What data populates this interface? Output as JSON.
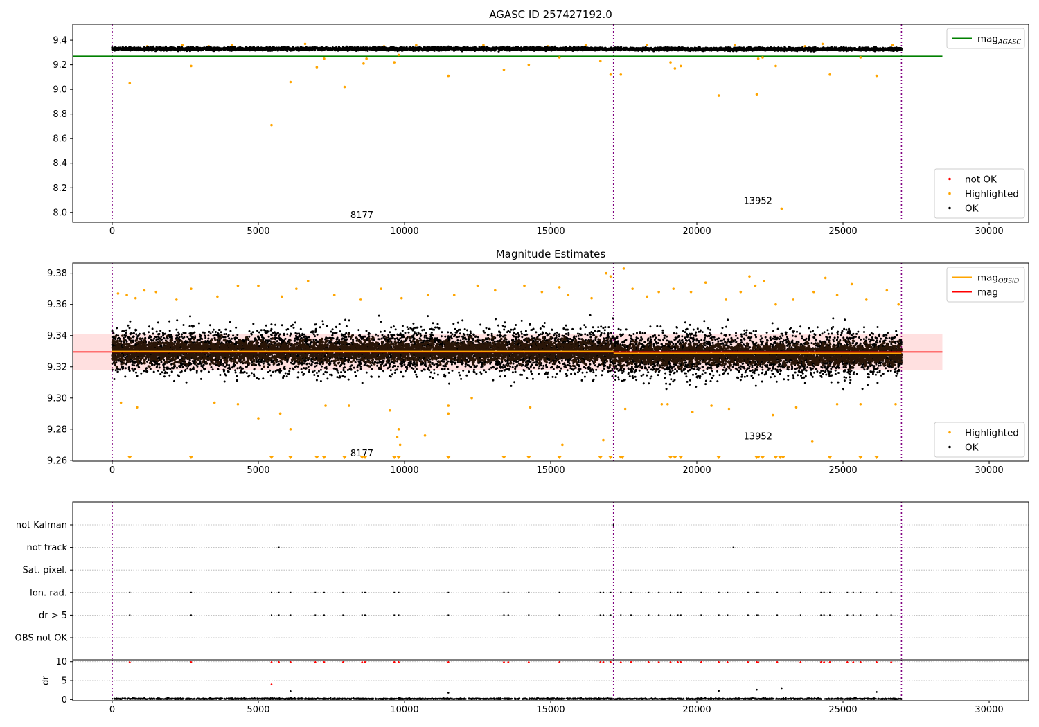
{
  "chart_data": [
    {
      "id": "agasc-panel",
      "type": "scatter",
      "title": "AGASC ID 257427192.0",
      "xlim": [
        -1350,
        31350
      ],
      "ylim": [
        7.92,
        9.53
      ],
      "xticks": [
        0,
        5000,
        10000,
        15000,
        20000,
        25000,
        30000
      ],
      "yticks": [
        8.0,
        8.2,
        8.4,
        8.6,
        8.8,
        9.0,
        9.2,
        9.4
      ],
      "ytick_decimals": 1,
      "obs_boundaries": [
        0,
        17150,
        27000
      ],
      "obs_annotations": [
        {
          "text": "8177",
          "x": 8150,
          "y": 7.955
        },
        {
          "text": "13952",
          "x": 21600,
          "y": 8.07
        }
      ],
      "reference_lines": [
        {
          "name": "mag",
          "subscript": "AGASC",
          "value": 9.27,
          "color": "#008000",
          "x": [
            -1350,
            28400
          ]
        }
      ],
      "ok_band": {
        "segments": [
          [
            0,
            17150,
            9.33
          ],
          [
            17150,
            27000,
            9.328
          ]
        ],
        "spread": 0.02
      },
      "highlighted": [
        [
          600,
          9.05
        ],
        [
          2700,
          9.19
        ],
        [
          5450,
          8.71
        ],
        [
          6100,
          9.06
        ],
        [
          7000,
          9.18
        ],
        [
          7250,
          9.25
        ],
        [
          7950,
          9.02
        ],
        [
          8600,
          9.21
        ],
        [
          8700,
          9.25
        ],
        [
          9650,
          9.22
        ],
        [
          9800,
          9.28
        ],
        [
          11500,
          9.11
        ],
        [
          13400,
          9.16
        ],
        [
          14250,
          9.2
        ],
        [
          15300,
          9.26
        ],
        [
          16700,
          9.23
        ],
        [
          17050,
          9.12
        ],
        [
          17400,
          9.12
        ],
        [
          19100,
          9.22
        ],
        [
          19250,
          9.17
        ],
        [
          19450,
          9.19
        ],
        [
          20750,
          8.95
        ],
        [
          22050,
          8.96
        ],
        [
          22100,
          9.25
        ],
        [
          22250,
          9.26
        ],
        [
          22700,
          9.19
        ],
        [
          22900,
          8.03
        ],
        [
          24550,
          9.12
        ],
        [
          25600,
          9.26
        ],
        [
          26150,
          9.11
        ],
        [
          1200,
          9.35
        ],
        [
          2400,
          9.36
        ],
        [
          3300,
          9.35
        ],
        [
          4100,
          9.36
        ],
        [
          6600,
          9.37
        ],
        [
          9300,
          9.35
        ],
        [
          10400,
          9.36
        ],
        [
          12700,
          9.36
        ],
        [
          14900,
          9.35
        ],
        [
          16200,
          9.36
        ],
        [
          18300,
          9.36
        ],
        [
          21300,
          9.36
        ],
        [
          23700,
          9.35
        ],
        [
          24300,
          9.37
        ],
        [
          26700,
          9.36
        ]
      ],
      "not_ok": [],
      "legends": [
        {
          "position": "top-right",
          "entries": [
            {
              "label": "mag",
              "subscript": "AGASC",
              "kind": "line",
              "color": "#008000"
            }
          ]
        },
        {
          "position": "bottom-right",
          "entries": [
            {
              "label": "not OK",
              "kind": "marker",
              "color": "#ff0000"
            },
            {
              "label": "Highlighted",
              "kind": "marker",
              "color": "#ffa500"
            },
            {
              "label": "OK",
              "kind": "marker",
              "color": "#000000"
            }
          ]
        }
      ]
    },
    {
      "id": "estimates-panel",
      "type": "scatter",
      "title": "Magnitude Estimates",
      "xlim": [
        -1350,
        31350
      ],
      "ylim": [
        9.2595,
        9.3865
      ],
      "xticks": [
        0,
        5000,
        10000,
        15000,
        20000,
        25000,
        30000
      ],
      "yticks": [
        9.26,
        9.28,
        9.3,
        9.32,
        9.34,
        9.36,
        9.38
      ],
      "ytick_decimals": 2,
      "obs_boundaries": [
        0,
        17150,
        27000
      ],
      "obs_annotations": [
        {
          "text": "8177",
          "x": 8150,
          "y": 9.2625
        },
        {
          "text": "13952",
          "x": 21600,
          "y": 9.2735
        }
      ],
      "mag_line": {
        "name": "mag",
        "value": 9.3295,
        "color": "#ff0000",
        "x": [
          -1350,
          28400
        ],
        "band": [
          9.318,
          9.341
        ]
      },
      "obsid_lines": [
        {
          "x": [
            0,
            17150
          ],
          "value": 9.3298,
          "color": "#ffa500"
        },
        {
          "x": [
            17150,
            27000
          ],
          "value": 9.3285,
          "color": "#ffa500"
        }
      ],
      "ok_band": {
        "segments": [
          [
            0,
            17150,
            9.33
          ],
          [
            17150,
            27000,
            9.328
          ]
        ],
        "spread": 0.022
      },
      "highlighted": [
        [
          200,
          9.367
        ],
        [
          500,
          9.366
        ],
        [
          800,
          9.364
        ],
        [
          1100,
          9.369
        ],
        [
          1500,
          9.368
        ],
        [
          2200,
          9.363
        ],
        [
          2700,
          9.37
        ],
        [
          3600,
          9.365
        ],
        [
          4300,
          9.372
        ],
        [
          5000,
          9.372
        ],
        [
          5800,
          9.365
        ],
        [
          6300,
          9.37
        ],
        [
          6700,
          9.375
        ],
        [
          7600,
          9.366
        ],
        [
          8500,
          9.363
        ],
        [
          9200,
          9.37
        ],
        [
          9900,
          9.364
        ],
        [
          10800,
          9.366
        ],
        [
          11700,
          9.366
        ],
        [
          12500,
          9.372
        ],
        [
          13100,
          9.369
        ],
        [
          14100,
          9.372
        ],
        [
          14700,
          9.368
        ],
        [
          15300,
          9.371
        ],
        [
          15600,
          9.366
        ],
        [
          16400,
          9.364
        ],
        [
          16900,
          9.38
        ],
        [
          17050,
          9.378
        ],
        [
          17500,
          9.383
        ],
        [
          17800,
          9.37
        ],
        [
          18300,
          9.365
        ],
        [
          18700,
          9.368
        ],
        [
          19200,
          9.37
        ],
        [
          19800,
          9.368
        ],
        [
          20300,
          9.374
        ],
        [
          21000,
          9.363
        ],
        [
          21500,
          9.368
        ],
        [
          21800,
          9.378
        ],
        [
          22000,
          9.372
        ],
        [
          22300,
          9.375
        ],
        [
          22700,
          9.36
        ],
        [
          23300,
          9.363
        ],
        [
          24000,
          9.368
        ],
        [
          24400,
          9.377
        ],
        [
          24800,
          9.366
        ],
        [
          25300,
          9.373
        ],
        [
          25800,
          9.363
        ],
        [
          26500,
          9.369
        ],
        [
          26900,
          9.36
        ],
        [
          300,
          9.297
        ],
        [
          850,
          9.294
        ],
        [
          3500,
          9.297
        ],
        [
          4300,
          9.296
        ],
        [
          5000,
          9.287
        ],
        [
          5750,
          9.29
        ],
        [
          6100,
          9.28
        ],
        [
          7300,
          9.295
        ],
        [
          8100,
          9.295
        ],
        [
          9500,
          9.292
        ],
        [
          9750,
          9.275
        ],
        [
          9800,
          9.28
        ],
        [
          9850,
          9.27
        ],
        [
          10700,
          9.276
        ],
        [
          11500,
          9.29
        ],
        [
          11500,
          9.295
        ],
        [
          12300,
          9.3
        ],
        [
          14300,
          9.294
        ],
        [
          15400,
          9.27
        ],
        [
          16800,
          9.273
        ],
        [
          17550,
          9.293
        ],
        [
          18800,
          9.296
        ],
        [
          19000,
          9.296
        ],
        [
          19850,
          9.291
        ],
        [
          20500,
          9.295
        ],
        [
          21100,
          9.293
        ],
        [
          22600,
          9.289
        ],
        [
          23400,
          9.294
        ],
        [
          23950,
          9.272
        ],
        [
          24800,
          9.296
        ],
        [
          25600,
          9.296
        ],
        [
          26800,
          9.296
        ]
      ],
      "clipped_low_x": [
        600,
        2700,
        5450,
        6100,
        7000,
        7250,
        7950,
        8550,
        8650,
        9650,
        9800,
        11500,
        13400,
        14250,
        15300,
        16700,
        17050,
        17400,
        17450,
        19100,
        19250,
        19450,
        20750,
        22050,
        22100,
        22250,
        22700,
        22850,
        22950,
        24550,
        25600,
        26150
      ],
      "legends": [
        {
          "position": "top-right",
          "entries": [
            {
              "label": "mag",
              "subscript": "OBSID",
              "kind": "line",
              "color": "#ffa500"
            },
            {
              "label": "mag",
              "kind": "line",
              "color": "#ff0000"
            }
          ]
        },
        {
          "position": "bottom-right",
          "entries": [
            {
              "label": "Highlighted",
              "kind": "marker",
              "color": "#ffa500"
            },
            {
              "label": "OK",
              "kind": "marker",
              "color": "#000000"
            }
          ]
        }
      ]
    },
    {
      "id": "flags-panel",
      "type": "scatter",
      "xlim": [
        -1350,
        31350
      ],
      "xticks": [
        0,
        5000,
        10000,
        15000,
        20000,
        25000,
        30000
      ],
      "obs_boundaries": [
        0,
        17150,
        27000
      ],
      "categories": [
        "not Kalman",
        "not track",
        "Sat. pixel.",
        "Ion. rad.",
        "dr > 5",
        "OBS not OK"
      ],
      "flag_points": {
        "not Kalman": [
          17150
        ],
        "not track": [
          5700,
          21250
        ],
        "Sat. pixel.": [],
        "Ion. rad.": [
          600,
          2700,
          5450,
          5700,
          6100,
          6950,
          7250,
          7900,
          8550,
          8650,
          9650,
          9800,
          11500,
          13400,
          13550,
          14250,
          15300,
          16700,
          16800,
          17050,
          17400,
          17750,
          18350,
          18700,
          19100,
          19350,
          19450,
          20150,
          20750,
          21050,
          21750,
          22050,
          22100,
          22750,
          23550,
          24250,
          24350,
          24550,
          25150,
          25350,
          25600,
          26150,
          26650
        ],
        "dr > 5": [
          600,
          2700,
          5450,
          5700,
          6100,
          6950,
          7250,
          7900,
          8550,
          8650,
          9650,
          9800,
          11500,
          13400,
          13550,
          14250,
          15300,
          16700,
          16800,
          17050,
          17400,
          17750,
          18350,
          18700,
          19100,
          19350,
          19450,
          20150,
          20750,
          21050,
          21750,
          22050,
          22100,
          22750,
          23550,
          24250,
          24350,
          24550,
          25150,
          25350,
          25600,
          26150,
          26650
        ],
        "OBS not OK": []
      }
    },
    {
      "id": "dr-panel",
      "type": "scatter",
      "ylabel": "dr",
      "xlim": [
        -1350,
        31350
      ],
      "ylim": [
        -0.3,
        10.5
      ],
      "xticks": [
        0,
        5000,
        10000,
        15000,
        20000,
        25000,
        30000
      ],
      "yticks": [
        0,
        5,
        10
      ],
      "obs_boundaries": [
        0,
        17150,
        27000
      ],
      "dr_cap": 10,
      "capped_x": [
        600,
        2700,
        5450,
        5700,
        6100,
        6950,
        7250,
        7900,
        8550,
        8650,
        9650,
        9800,
        11500,
        13400,
        13550,
        14250,
        15300,
        16700,
        16800,
        17050,
        17400,
        17750,
        18350,
        18700,
        19100,
        19350,
        19450,
        20150,
        20750,
        21050,
        21750,
        22050,
        22100,
        22750,
        23550,
        24250,
        24350,
        24550,
        25150,
        25350,
        25600,
        26150,
        26650
      ],
      "outliers": [
        [
          5450,
          4.0,
          "#ff0000"
        ],
        [
          6100,
          2.2,
          "#000000"
        ],
        [
          20750,
          2.3,
          "#000000"
        ],
        [
          22050,
          2.6,
          "#000000"
        ],
        [
          22900,
          3.0,
          "#000000"
        ],
        [
          26150,
          2.0,
          "#000000"
        ],
        [
          11500,
          1.8,
          "#000000"
        ]
      ],
      "baseline": [
        0,
        0.6
      ]
    }
  ]
}
